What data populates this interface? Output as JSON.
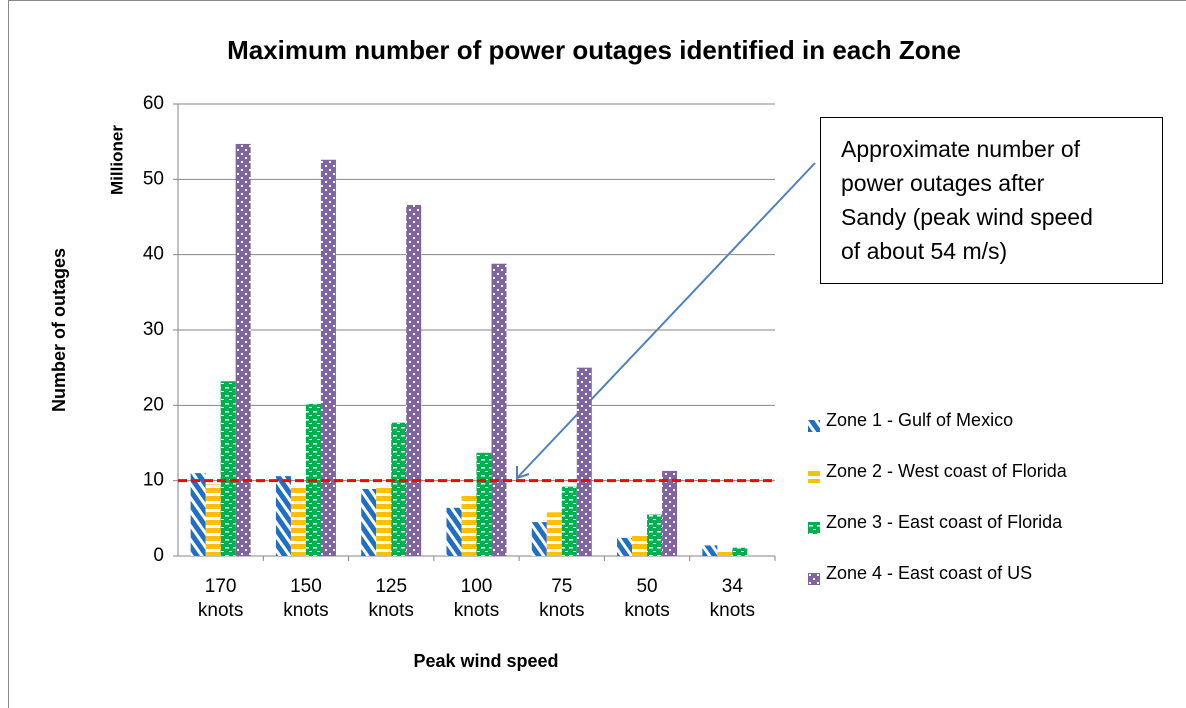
{
  "chart_data": {
    "type": "bar",
    "title": "Maximum number of power outages identified in each Zone",
    "y_unit_label": "Millioner",
    "y_label": "Number of outages",
    "x_label": "Peak wind speed",
    "categories": [
      "170 knots",
      "150 knots",
      "125 knots",
      "100 knots",
      "75 knots",
      "50 knots",
      "34 knots"
    ],
    "series": [
      {
        "name": "Zone 1 - Gulf of Mexico",
        "color": "#1f6fc4",
        "values": [
          11,
          10.6,
          8.9,
          6.4,
          4.5,
          2.4,
          1.4
        ]
      },
      {
        "name": "Zone 2 - West coast of Florida",
        "color": "#ffc000",
        "values": [
          9.5,
          9.4,
          9.4,
          8.2,
          5.8,
          3.0,
          0.8
        ]
      },
      {
        "name": "Zone 3 - East coast of Florida",
        "color": "#00b050",
        "values": [
          23.2,
          20.2,
          17.7,
          13.7,
          9.2,
          5.5,
          1.1
        ]
      },
      {
        "name": "Zone 4 - East coast of US",
        "color": "#8064a2",
        "values": [
          54.7,
          52.6,
          46.6,
          38.8,
          25,
          11.3,
          null
        ]
      }
    ],
    "ylim": [
      0,
      60
    ],
    "yticks": [
      0,
      10,
      20,
      30,
      40,
      50,
      60
    ],
    "grid": true,
    "reference_line": 10,
    "reference_color": "#ff0000",
    "annotation": [
      "Approximate number of",
      "power outages after",
      "Sandy (peak wind speed",
      "of about 54 m/s)"
    ]
  }
}
